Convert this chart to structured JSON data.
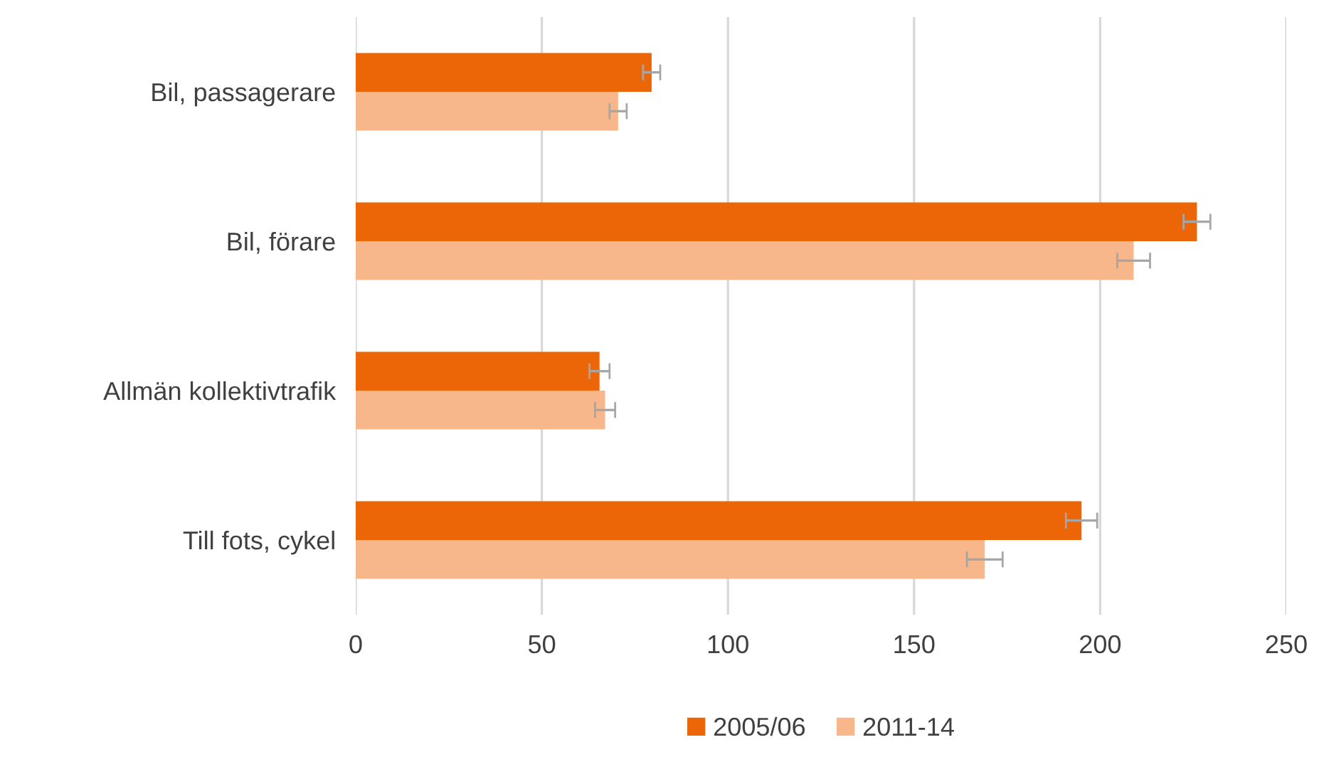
{
  "chart_data": {
    "type": "bar",
    "orientation": "horizontal",
    "categories": [
      "Bil, passagerare",
      "Bil, förare",
      "Allmän kollektivtrafik",
      "Till fots, cykel"
    ],
    "series": [
      {
        "name": "2005/06",
        "color": "#ec6608",
        "values": [
          79.5,
          226,
          65.5,
          195
        ],
        "errors": [
          2.3,
          3.6,
          2.7,
          4.2
        ]
      },
      {
        "name": "2011-14",
        "color": "#f7b78a",
        "values": [
          70.5,
          209,
          67,
          169
        ],
        "errors": [
          2.3,
          4.4,
          2.7,
          4.8
        ]
      }
    ],
    "xlim": [
      0,
      250
    ],
    "xticks": [
      0,
      50,
      100,
      150,
      200,
      250
    ],
    "grid": "x",
    "legend": "bottom"
  }
}
